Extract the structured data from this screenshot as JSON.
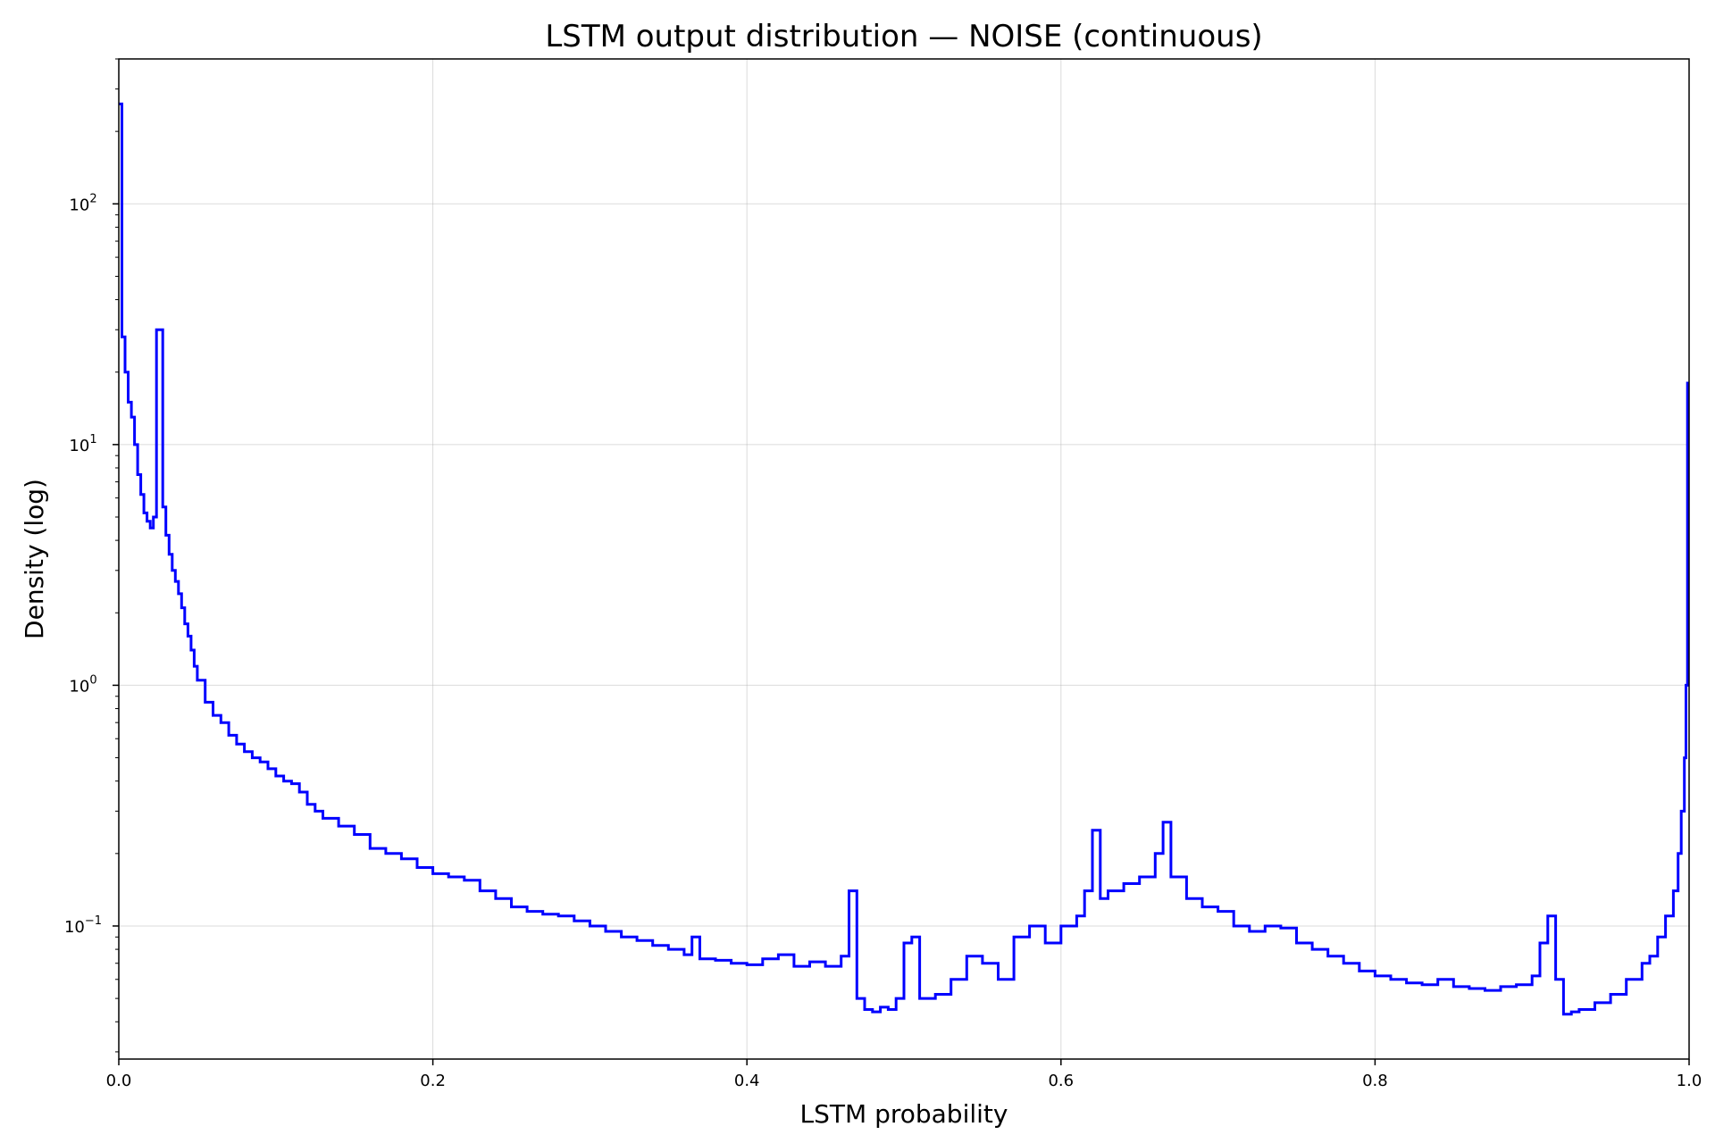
{
  "chart_data": {
    "type": "line",
    "title": "LSTM output distribution — NOISE (continuous)",
    "xlabel": "LSTM probability",
    "ylabel": "Density (log)",
    "xlim": [
      0.0,
      1.0
    ],
    "ylim": [
      0.028,
      400
    ],
    "yscale": "log",
    "grid": true,
    "x_ticks": [
      {
        "value": 0.0,
        "label": "0.0"
      },
      {
        "value": 0.2,
        "label": "0.2"
      },
      {
        "value": 0.4,
        "label": "0.4"
      },
      {
        "value": 0.6,
        "label": "0.6"
      },
      {
        "value": 0.8,
        "label": "0.8"
      },
      {
        "value": 1.0,
        "label": "1.0"
      }
    ],
    "y_ticks": [
      {
        "value": 0.1,
        "base": "10",
        "exp": "−1"
      },
      {
        "value": 1,
        "base": "10",
        "exp": "0"
      },
      {
        "value": 10,
        "base": "10",
        "exp": "1"
      },
      {
        "value": 100,
        "base": "10",
        "exp": "2"
      }
    ],
    "series": [
      {
        "color": "#0000ff",
        "x": [
          0.0,
          0.002,
          0.004,
          0.006,
          0.008,
          0.01,
          0.012,
          0.014,
          0.016,
          0.018,
          0.02,
          0.022,
          0.024,
          0.026,
          0.028,
          0.03,
          0.032,
          0.034,
          0.036,
          0.038,
          0.04,
          0.042,
          0.044,
          0.046,
          0.048,
          0.05,
          0.055,
          0.06,
          0.065,
          0.07,
          0.075,
          0.08,
          0.085,
          0.09,
          0.095,
          0.1,
          0.105,
          0.11,
          0.115,
          0.12,
          0.125,
          0.13,
          0.14,
          0.15,
          0.16,
          0.17,
          0.18,
          0.19,
          0.2,
          0.21,
          0.22,
          0.23,
          0.24,
          0.25,
          0.26,
          0.27,
          0.28,
          0.29,
          0.3,
          0.31,
          0.32,
          0.33,
          0.34,
          0.35,
          0.36,
          0.365,
          0.37,
          0.38,
          0.39,
          0.4,
          0.41,
          0.42,
          0.43,
          0.44,
          0.45,
          0.46,
          0.465,
          0.47,
          0.475,
          0.48,
          0.485,
          0.49,
          0.495,
          0.5,
          0.505,
          0.51,
          0.52,
          0.53,
          0.54,
          0.55,
          0.56,
          0.57,
          0.58,
          0.59,
          0.6,
          0.61,
          0.615,
          0.62,
          0.625,
          0.63,
          0.64,
          0.65,
          0.66,
          0.665,
          0.67,
          0.68,
          0.69,
          0.7,
          0.71,
          0.72,
          0.73,
          0.74,
          0.75,
          0.76,
          0.77,
          0.78,
          0.79,
          0.8,
          0.81,
          0.82,
          0.83,
          0.84,
          0.85,
          0.86,
          0.87,
          0.88,
          0.89,
          0.9,
          0.905,
          0.91,
          0.915,
          0.92,
          0.925,
          0.93,
          0.94,
          0.95,
          0.96,
          0.97,
          0.975,
          0.98,
          0.985,
          0.99,
          0.993,
          0.995,
          0.997,
          0.998,
          0.999
        ],
        "y": [
          260,
          28,
          20,
          15,
          13,
          10,
          7.5,
          6.2,
          5.2,
          4.8,
          4.5,
          5.0,
          30,
          30,
          5.5,
          4.2,
          3.5,
          3.0,
          2.7,
          2.4,
          2.1,
          1.8,
          1.6,
          1.4,
          1.2,
          1.05,
          0.85,
          0.75,
          0.7,
          0.62,
          0.57,
          0.53,
          0.5,
          0.48,
          0.45,
          0.42,
          0.4,
          0.39,
          0.36,
          0.32,
          0.3,
          0.28,
          0.26,
          0.24,
          0.21,
          0.2,
          0.19,
          0.175,
          0.165,
          0.16,
          0.155,
          0.14,
          0.13,
          0.12,
          0.115,
          0.112,
          0.11,
          0.105,
          0.1,
          0.095,
          0.09,
          0.087,
          0.083,
          0.08,
          0.076,
          0.09,
          0.073,
          0.072,
          0.07,
          0.069,
          0.073,
          0.076,
          0.068,
          0.071,
          0.068,
          0.075,
          0.14,
          0.05,
          0.045,
          0.044,
          0.046,
          0.045,
          0.05,
          0.085,
          0.09,
          0.05,
          0.052,
          0.06,
          0.075,
          0.07,
          0.06,
          0.09,
          0.1,
          0.085,
          0.1,
          0.11,
          0.14,
          0.25,
          0.13,
          0.14,
          0.15,
          0.16,
          0.2,
          0.27,
          0.16,
          0.13,
          0.12,
          0.115,
          0.1,
          0.095,
          0.1,
          0.098,
          0.085,
          0.08,
          0.075,
          0.07,
          0.065,
          0.062,
          0.06,
          0.058,
          0.057,
          0.06,
          0.056,
          0.055,
          0.054,
          0.056,
          0.057,
          0.062,
          0.085,
          0.11,
          0.06,
          0.043,
          0.044,
          0.045,
          0.048,
          0.052,
          0.06,
          0.07,
          0.075,
          0.09,
          0.11,
          0.14,
          0.2,
          0.3,
          0.5,
          1.0,
          18
        ]
      }
    ]
  }
}
